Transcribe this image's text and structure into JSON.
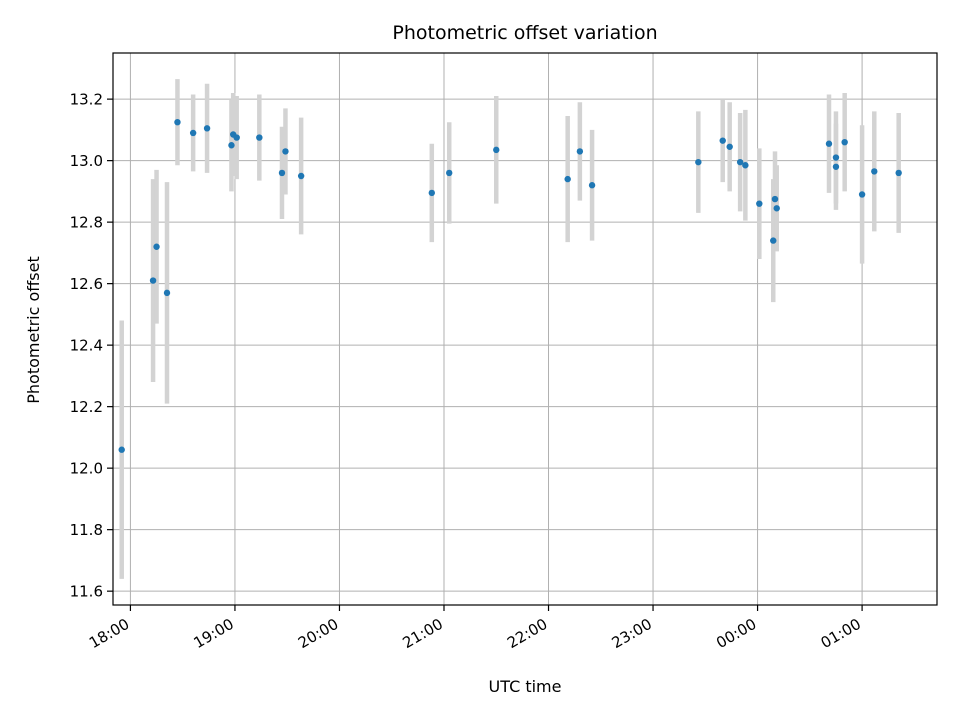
{
  "chart_data": {
    "type": "scatter",
    "title": "Photometric offset variation",
    "xlabel": "UTC time",
    "ylabel": "Photometric offset",
    "x_axis_type": "time",
    "xlim": [
      "17:50",
      "01:43"
    ],
    "ylim": [
      11.555,
      13.35
    ],
    "grid": true,
    "x_ticks": [
      "18:00",
      "19:00",
      "20:00",
      "21:00",
      "22:00",
      "23:00",
      "00:00",
      "01:00"
    ],
    "y_ticks": [
      "11.6",
      "11.8",
      "12.0",
      "12.2",
      "12.4",
      "12.6",
      "12.8",
      "13.0",
      "13.2"
    ],
    "colors": {
      "marker": "#1f77b4",
      "error_bar": "#d3d3d3",
      "grid": "#b0b0b0"
    },
    "points": [
      {
        "time": "17:55",
        "value": 12.06,
        "err": 0.42
      },
      {
        "time": "18:13",
        "value": 12.61,
        "err": 0.33
      },
      {
        "time": "18:15",
        "value": 12.72,
        "err": 0.25
      },
      {
        "time": "18:21",
        "value": 12.57,
        "err": 0.36
      },
      {
        "time": "18:27",
        "value": 13.125,
        "err": 0.14
      },
      {
        "time": "18:36",
        "value": 13.09,
        "err": 0.125
      },
      {
        "time": "18:44",
        "value": 13.105,
        "err": 0.145
      },
      {
        "time": "18:58",
        "value": 13.05,
        "err": 0.15
      },
      {
        "time": "18:59",
        "value": 13.085,
        "err": 0.135
      },
      {
        "time": "19:01",
        "value": 13.075,
        "err": 0.135
      },
      {
        "time": "19:14",
        "value": 13.075,
        "err": 0.14
      },
      {
        "time": "19:27",
        "value": 12.96,
        "err": 0.15
      },
      {
        "time": "19:29",
        "value": 13.03,
        "err": 0.14
      },
      {
        "time": "19:38",
        "value": 12.95,
        "err": 0.19
      },
      {
        "time": "20:53",
        "value": 12.895,
        "err": 0.16
      },
      {
        "time": "21:03",
        "value": 12.96,
        "err": 0.165
      },
      {
        "time": "21:30",
        "value": 13.035,
        "err": 0.175
      },
      {
        "time": "22:11",
        "value": 12.94,
        "err": 0.205
      },
      {
        "time": "22:18",
        "value": 13.03,
        "err": 0.16
      },
      {
        "time": "22:25",
        "value": 12.92,
        "err": 0.18
      },
      {
        "time": "23:26",
        "value": 12.995,
        "err": 0.165
      },
      {
        "time": "23:40",
        "value": 13.065,
        "err": 0.135
      },
      {
        "time": "23:44",
        "value": 13.045,
        "err": 0.145
      },
      {
        "time": "23:50",
        "value": 12.995,
        "err": 0.16
      },
      {
        "time": "23:53",
        "value": 12.985,
        "err": 0.18
      },
      {
        "time": "00:01",
        "value": 12.86,
        "err": 0.18
      },
      {
        "time": "00:09",
        "value": 12.74,
        "err": 0.2
      },
      {
        "time": "00:10",
        "value": 12.875,
        "err": 0.155
      },
      {
        "time": "00:11",
        "value": 12.845,
        "err": 0.14
      },
      {
        "time": "00:41",
        "value": 13.055,
        "err": 0.16
      },
      {
        "time": "00:45",
        "value": 13.01,
        "err": 0.15
      },
      {
        "time": "00:45",
        "value": 12.98,
        "err": 0.14
      },
      {
        "time": "00:50",
        "value": 13.06,
        "err": 0.16
      },
      {
        "time": "01:00",
        "value": 12.89,
        "err": 0.225
      },
      {
        "time": "01:07",
        "value": 12.965,
        "err": 0.195
      },
      {
        "time": "01:21",
        "value": 12.96,
        "err": 0.195
      }
    ]
  }
}
